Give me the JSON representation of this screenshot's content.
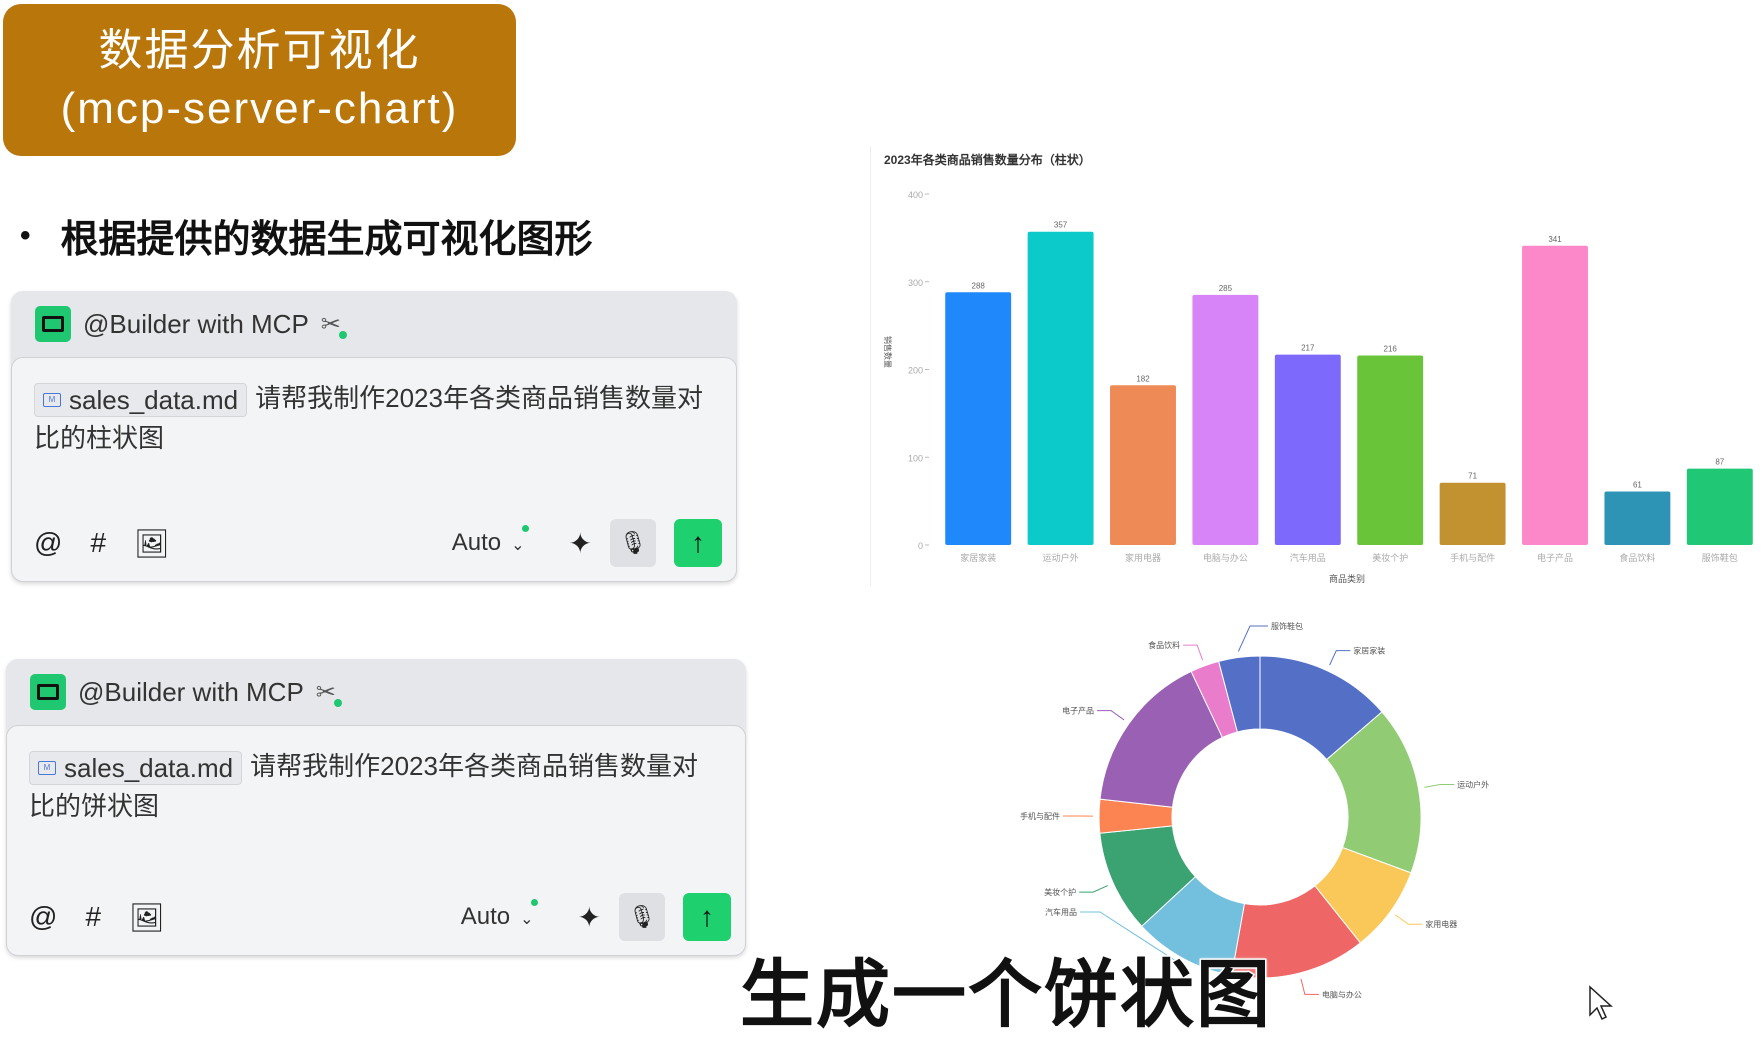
{
  "title_box": {
    "line1": "数据分析可视化",
    "line2": "(mcp-server-chart)"
  },
  "bullet": {
    "text": "根据提供的数据生成可视化图形"
  },
  "chats": [
    {
      "agent": "@Builder with MCP",
      "file": "sales_data.md",
      "message": "请帮我制作2023年各类商品销售数量对比的柱状图",
      "model": "Auto"
    },
    {
      "agent": "@Builder with MCP",
      "file": "sales_data.md",
      "message": "请帮我制作2023年各类商品销售数量对比的饼状图",
      "model": "Auto"
    }
  ],
  "toolbar_icons": {
    "mention": "@",
    "tag": "#"
  },
  "caption": "生成一个饼状图",
  "chart_data": [
    {
      "type": "bar",
      "title": "2023年各类商品销售数量分布（柱状）",
      "xlabel": "商品类别",
      "ylabel": "销售数量",
      "ylim": [
        0,
        400
      ],
      "yticks": [
        0,
        100,
        200,
        300,
        400
      ],
      "grid": false,
      "categories": [
        "家居家装",
        "运动户外",
        "家用电器",
        "电脑与办公",
        "汽车用品",
        "美妆个护",
        "手机与配件",
        "电子产品",
        "食品饮料",
        "服饰鞋包"
      ],
      "values": [
        288,
        357,
        182,
        285,
        217,
        216,
        71,
        341,
        61,
        87
      ],
      "colors": [
        "#1f88fb",
        "#0ccaca",
        "#ee8a55",
        "#d784f8",
        "#7d69fb",
        "#6ac43a",
        "#c1922f",
        "#fc87c9",
        "#2e94b5",
        "#20c774"
      ]
    },
    {
      "type": "pie",
      "donut": true,
      "categories": [
        "家居家装",
        "运动户外",
        "家用电器",
        "电脑与办公",
        "汽车用品",
        "美妆个护",
        "手机与配件",
        "电子产品",
        "食品饮料",
        "服饰鞋包"
      ],
      "values": [
        288,
        357,
        182,
        285,
        217,
        216,
        71,
        341,
        61,
        87
      ],
      "colors": [
        "#5470c6",
        "#91cc75",
        "#fac858",
        "#ee6666",
        "#73c0de",
        "#3ba272",
        "#fc8452",
        "#9a60b4",
        "#ea7ccc",
        "#5470c6"
      ]
    }
  ],
  "colors": {
    "title_bg": "#b8760b",
    "send": "#1fd06e",
    "agent": "#1fc770"
  }
}
